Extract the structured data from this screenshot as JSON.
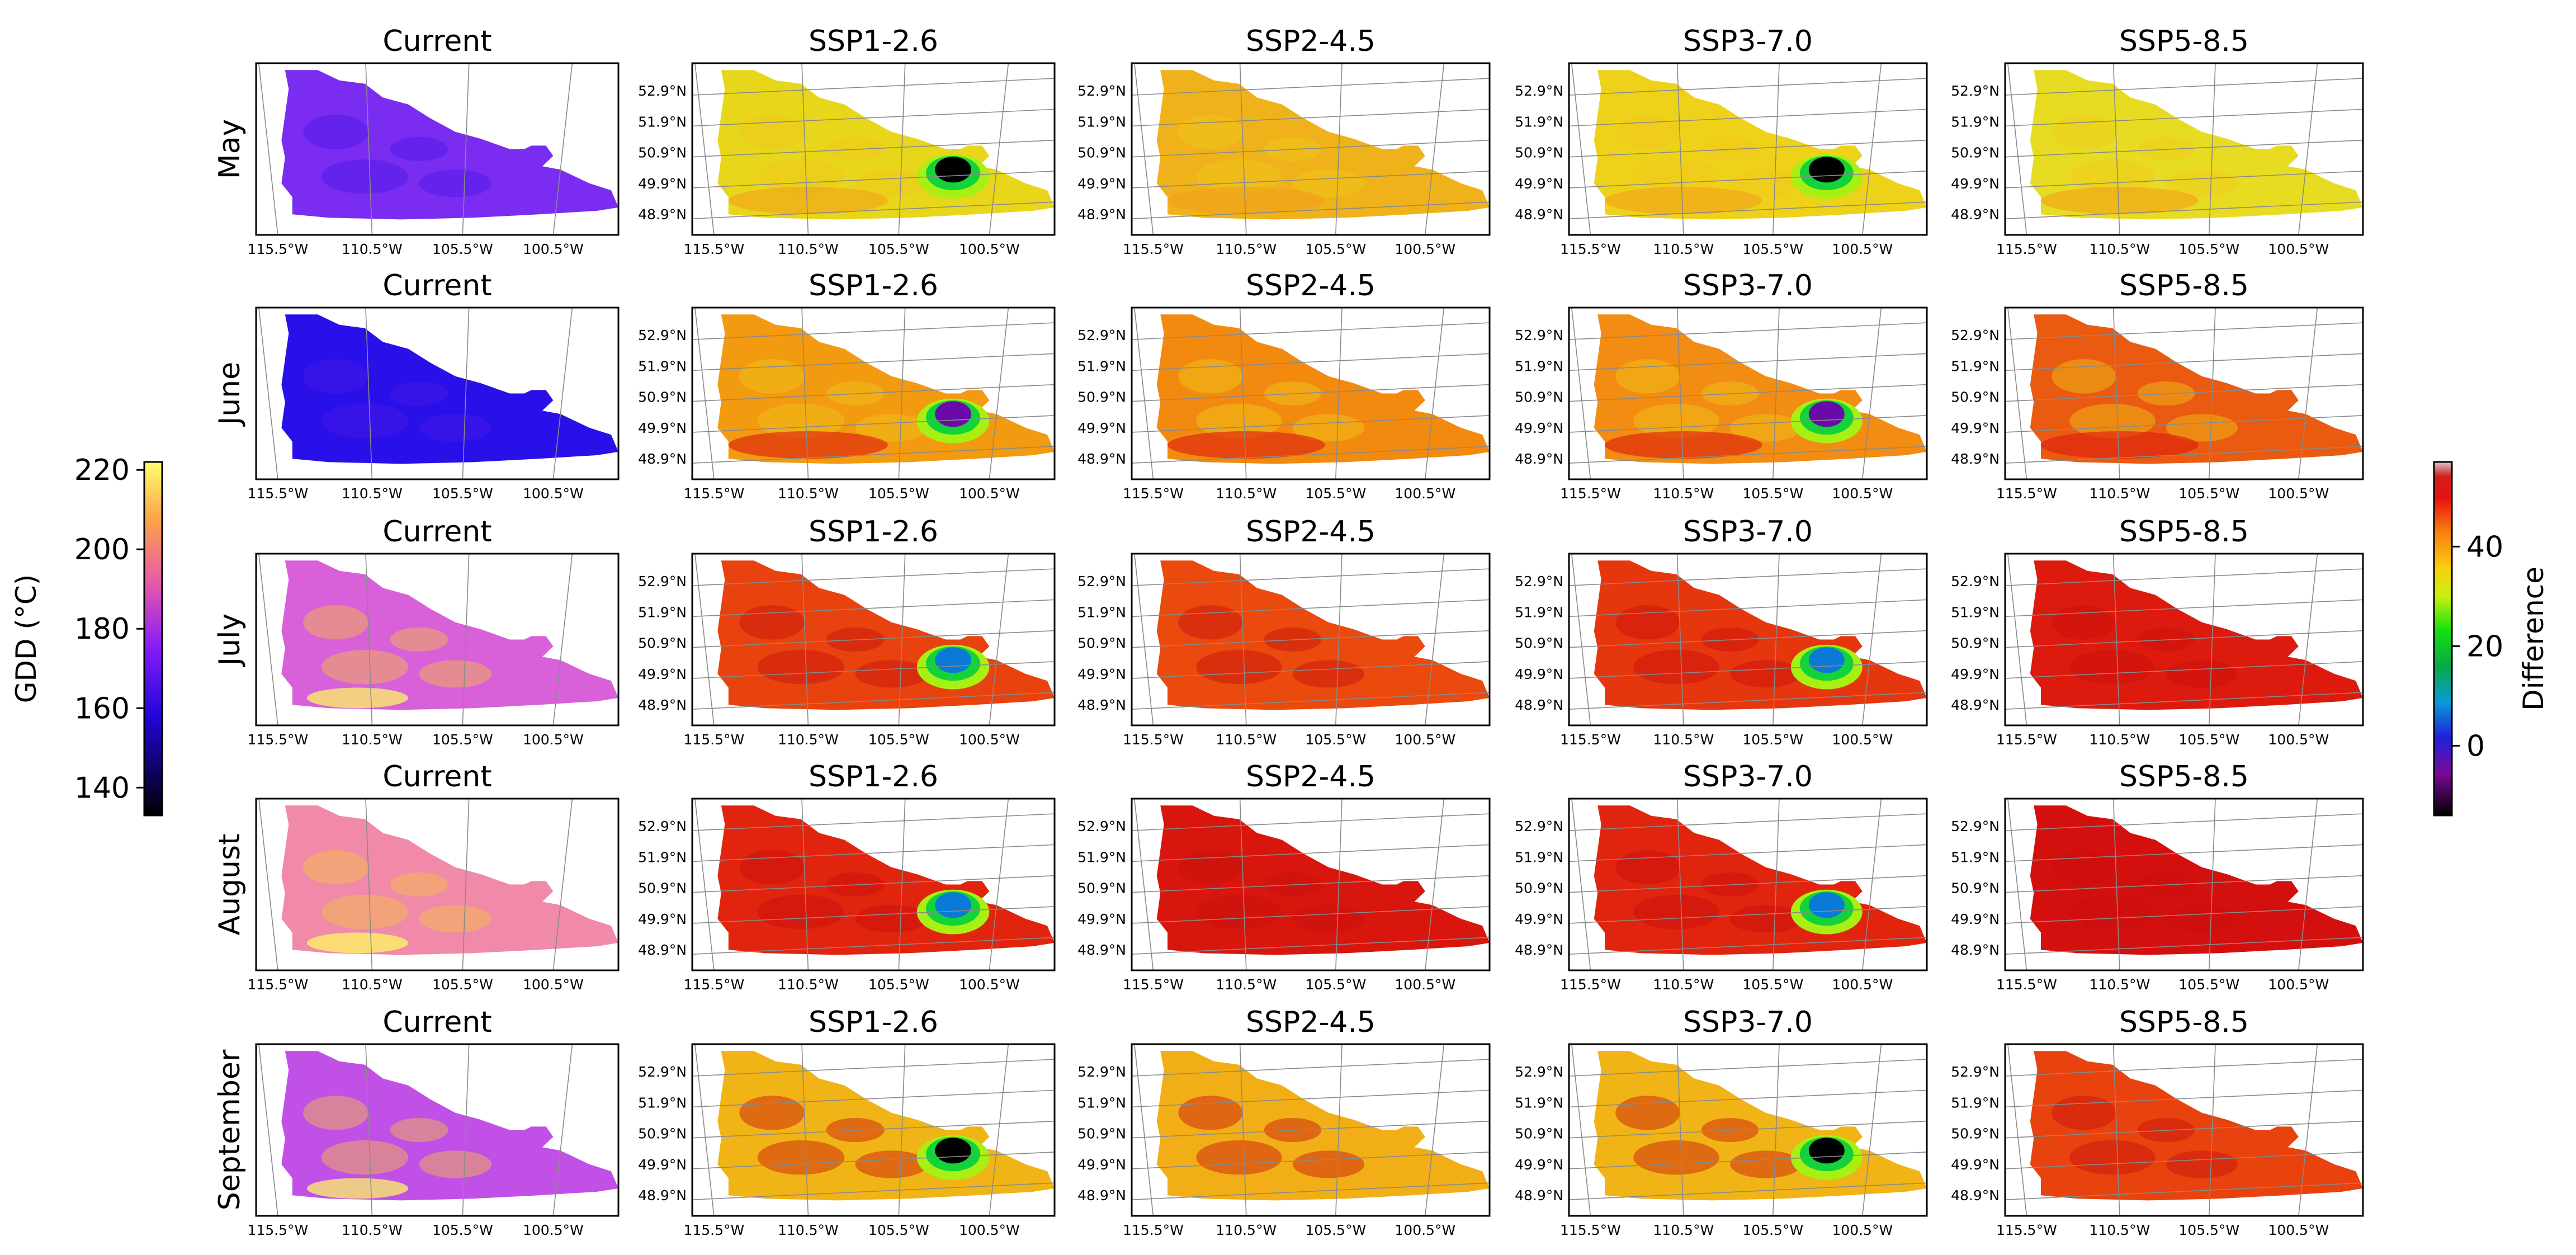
{
  "row_labels": [
    "May",
    "June",
    "July",
    "August",
    "September"
  ],
  "col_titles": [
    "Current",
    "SSP1-2.6",
    "SSP2-4.5",
    "SSP3-7.0",
    "SSP5-8.5"
  ],
  "lon_ticks": [
    "115.5°W",
    "110.5°W",
    "105.5°W",
    "100.5°W"
  ],
  "lat_ticks": [
    "52.9°N",
    "51.9°N",
    "50.9°N",
    "49.9°N",
    "48.9°N"
  ],
  "colorbar_left": {
    "label": "GDD (°C)",
    "ticks": [
      "220",
      "200",
      "180",
      "160",
      "140"
    ],
    "colormap": "gnuplot2",
    "range": [
      133,
      222
    ]
  },
  "colorbar_right": {
    "label": "Difference",
    "ticks": [
      "40",
      "20",
      "0"
    ],
    "colormap": "nipy_spectral",
    "range": [
      -14,
      57
    ]
  },
  "panel_colors": {
    "current": [
      "#7a2cf0",
      "#2a10e8",
      "#d860d8",
      "#f08aa8",
      "#c050e6"
    ],
    "May": [
      "#e8d61a",
      "#f0b21a",
      "#eed21a",
      "#e8dc22"
    ],
    "June": [
      "#f29a10",
      "#f28a10",
      "#f28c12",
      "#ea5a10"
    ],
    "July": [
      "#e8420e",
      "#ea4a0e",
      "#e6360e",
      "#dc1a0e"
    ],
    "August": [
      "#e0240e",
      "#d8160e",
      "#e0240e",
      "#d4100e"
    ],
    "September": [
      "#f0b416",
      "#f2ae16",
      "#f0b416",
      "#e8420e"
    ]
  },
  "anomaly_colors": [
    "#000000",
    "#6a0aa8",
    "#0a7ad6",
    "#14d23a",
    "#a8f014"
  ]
}
